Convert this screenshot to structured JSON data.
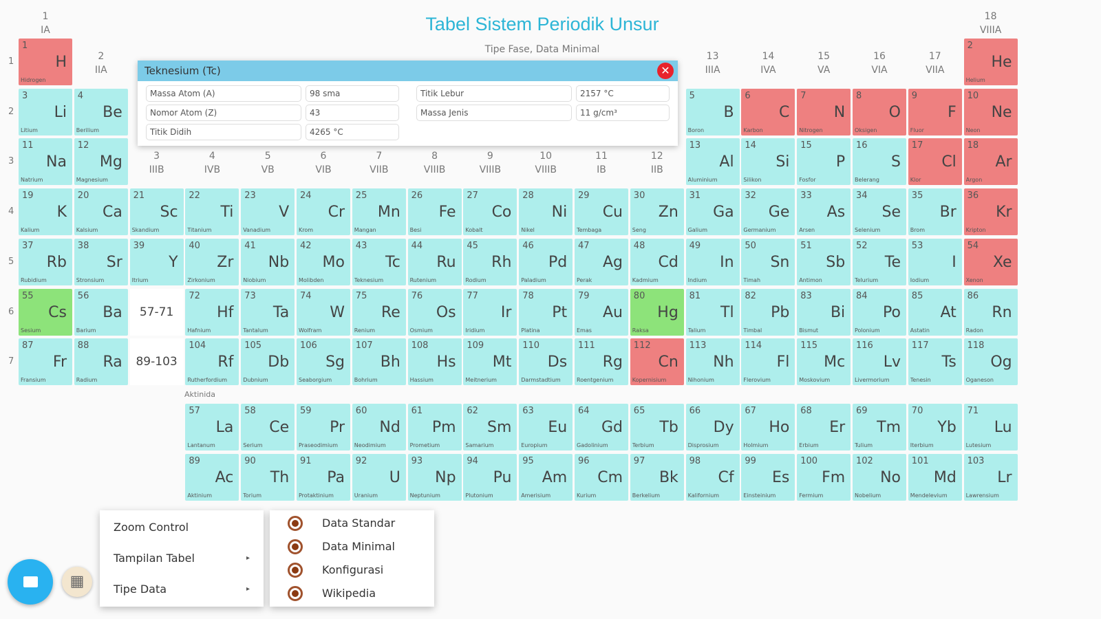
{
  "header": {
    "title": "Tabel Sistem Periodik Unsur",
    "subtitle": "Tipe Fase, Data Minimal"
  },
  "colors": {
    "solid": "#aeeeec",
    "gas": "#ee8080",
    "liquid": "#8de37a",
    "accent": "#2cb5d6"
  },
  "periods": [
    "1",
    "2",
    "3",
    "4",
    "5",
    "6",
    "7"
  ],
  "groups": [
    [
      "1",
      "IA"
    ],
    [
      "2",
      "IIA"
    ],
    [
      "3",
      "IIIB"
    ],
    [
      "4",
      "IVB"
    ],
    [
      "5",
      "VB"
    ],
    [
      "6",
      "VIB"
    ],
    [
      "7",
      "VIIB"
    ],
    [
      "8",
      "VIIIB"
    ],
    [
      "9",
      "VIIIB"
    ],
    [
      "10",
      "VIIIB"
    ],
    [
      "11",
      "IB"
    ],
    [
      "12",
      "IIB"
    ],
    [
      "13",
      "IIIA"
    ],
    [
      "14",
      "IVA"
    ],
    [
      "15",
      "VA"
    ],
    [
      "16",
      "VIA"
    ],
    [
      "17",
      "VIIA"
    ],
    [
      "18",
      "VIIIA"
    ]
  ],
  "placeholders": {
    "lanthanide": "57-71",
    "actinide": "89-103"
  },
  "series_labels": {
    "actinide": "Aktinida"
  },
  "elements": [
    [
      "1",
      "H",
      "Hidrogen",
      "g"
    ],
    [
      "2",
      "He",
      "Helium",
      "g"
    ],
    [
      "3",
      "Li",
      "Litium",
      "s"
    ],
    [
      "4",
      "Be",
      "Berilium",
      "s"
    ],
    [
      "5",
      "B",
      "Boron",
      "s"
    ],
    [
      "6",
      "C",
      "Karbon",
      "g"
    ],
    [
      "7",
      "N",
      "Nitrogen",
      "g"
    ],
    [
      "8",
      "O",
      "Oksigen",
      "g"
    ],
    [
      "9",
      "F",
      "Fluor",
      "g"
    ],
    [
      "10",
      "Ne",
      "Neon",
      "g"
    ],
    [
      "11",
      "Na",
      "Natrium",
      "s"
    ],
    [
      "12",
      "Mg",
      "Magnesium",
      "s"
    ],
    [
      "13",
      "Al",
      "Aluminium",
      "s"
    ],
    [
      "14",
      "Si",
      "Silikon",
      "s"
    ],
    [
      "15",
      "P",
      "Fosfor",
      "s"
    ],
    [
      "16",
      "S",
      "Belerang",
      "s"
    ],
    [
      "17",
      "Cl",
      "Klor",
      "g"
    ],
    [
      "18",
      "Ar",
      "Argon",
      "g"
    ],
    [
      "19",
      "K",
      "Kalium",
      "s"
    ],
    [
      "20",
      "Ca",
      "Kalsium",
      "s"
    ],
    [
      "21",
      "Sc",
      "Skandium",
      "s"
    ],
    [
      "22",
      "Ti",
      "Titanium",
      "s"
    ],
    [
      "23",
      "V",
      "Vanadium",
      "s"
    ],
    [
      "24",
      "Cr",
      "Krom",
      "s"
    ],
    [
      "25",
      "Mn",
      "Mangan",
      "s"
    ],
    [
      "26",
      "Fe",
      "Besi",
      "s"
    ],
    [
      "27",
      "Co",
      "Kobalt",
      "s"
    ],
    [
      "28",
      "Ni",
      "Nikel",
      "s"
    ],
    [
      "29",
      "Cu",
      "Tembaga",
      "s"
    ],
    [
      "30",
      "Zn",
      "Seng",
      "s"
    ],
    [
      "31",
      "Ga",
      "Galium",
      "s"
    ],
    [
      "32",
      "Ge",
      "Germanium",
      "s"
    ],
    [
      "33",
      "As",
      "Arsen",
      "s"
    ],
    [
      "34",
      "Se",
      "Selenium",
      "s"
    ],
    [
      "35",
      "Br",
      "Brom",
      "s"
    ],
    [
      "36",
      "Kr",
      "Kripton",
      "g"
    ],
    [
      "37",
      "Rb",
      "Rubidium",
      "s"
    ],
    [
      "38",
      "Sr",
      "Stronsium",
      "s"
    ],
    [
      "39",
      "Y",
      "Itrium",
      "s"
    ],
    [
      "40",
      "Zr",
      "Zirkonium",
      "s"
    ],
    [
      "41",
      "Nb",
      "Niobium",
      "s"
    ],
    [
      "42",
      "Mo",
      "Molibden",
      "s"
    ],
    [
      "43",
      "Tc",
      "Teknesium",
      "s"
    ],
    [
      "44",
      "Ru",
      "Rutenium",
      "s"
    ],
    [
      "45",
      "Rh",
      "Rodium",
      "s"
    ],
    [
      "46",
      "Pd",
      "Paladium",
      "s"
    ],
    [
      "47",
      "Ag",
      "Perak",
      "s"
    ],
    [
      "48",
      "Cd",
      "Kadmium",
      "s"
    ],
    [
      "49",
      "In",
      "Indium",
      "s"
    ],
    [
      "50",
      "Sn",
      "Timah",
      "s"
    ],
    [
      "51",
      "Sb",
      "Antimon",
      "s"
    ],
    [
      "52",
      "Te",
      "Telurium",
      "s"
    ],
    [
      "53",
      "I",
      "Iodium",
      "s"
    ],
    [
      "54",
      "Xe",
      "Xenon",
      "g"
    ],
    [
      "55",
      "Cs",
      "Sesium",
      "l"
    ],
    [
      "56",
      "Ba",
      "Barium",
      "s"
    ],
    [
      "72",
      "Hf",
      "Hafnium",
      "s"
    ],
    [
      "73",
      "Ta",
      "Tantalum",
      "s"
    ],
    [
      "74",
      "W",
      "Wolfram",
      "s"
    ],
    [
      "75",
      "Re",
      "Renium",
      "s"
    ],
    [
      "76",
      "Os",
      "Osmium",
      "s"
    ],
    [
      "77",
      "Ir",
      "Iridium",
      "s"
    ],
    [
      "78",
      "Pt",
      "Platina",
      "s"
    ],
    [
      "79",
      "Au",
      "Emas",
      "s"
    ],
    [
      "80",
      "Hg",
      "Raksa",
      "l"
    ],
    [
      "81",
      "Tl",
      "Talium",
      "s"
    ],
    [
      "82",
      "Pb",
      "Timbal",
      "s"
    ],
    [
      "83",
      "Bi",
      "Bismut",
      "s"
    ],
    [
      "84",
      "Po",
      "Polonium",
      "s"
    ],
    [
      "85",
      "At",
      "Astatin",
      "s"
    ],
    [
      "86",
      "Rn",
      "Radon",
      "s"
    ],
    [
      "87",
      "Fr",
      "Fransium",
      "s"
    ],
    [
      "88",
      "Ra",
      "Radium",
      "s"
    ],
    [
      "104",
      "Rf",
      "Rutherfordium",
      "s"
    ],
    [
      "105",
      "Db",
      "Dubnium",
      "s"
    ],
    [
      "106",
      "Sg",
      "Seaborgium",
      "s"
    ],
    [
      "107",
      "Bh",
      "Bohrium",
      "s"
    ],
    [
      "108",
      "Hs",
      "Hassium",
      "s"
    ],
    [
      "109",
      "Mt",
      "Meitnerium",
      "s"
    ],
    [
      "110",
      "Ds",
      "Darmstadtium",
      "s"
    ],
    [
      "111",
      "Rg",
      "Roentgenium",
      "s"
    ],
    [
      "112",
      "Cn",
      "Kopernisium",
      "g"
    ],
    [
      "113",
      "Nh",
      "Nihonium",
      "s"
    ],
    [
      "114",
      "Fl",
      "Flerovium",
      "s"
    ],
    [
      "115",
      "Mc",
      "Moskovium",
      "s"
    ],
    [
      "116",
      "Lv",
      "Livermorium",
      "s"
    ],
    [
      "117",
      "Ts",
      "Tenesin",
      "s"
    ],
    [
      "118",
      "Og",
      "Oganeson",
      "s"
    ]
  ],
  "lanthanides": [
    [
      "57",
      "La",
      "Lantanum",
      "s"
    ],
    [
      "58",
      "Ce",
      "Serium",
      "s"
    ],
    [
      "59",
      "Pr",
      "Praseodimium",
      "s"
    ],
    [
      "60",
      "Nd",
      "Neodimium",
      "s"
    ],
    [
      "61",
      "Pm",
      "Prometium",
      "s"
    ],
    [
      "62",
      "Sm",
      "Samarium",
      "s"
    ],
    [
      "63",
      "Eu",
      "Europium",
      "s"
    ],
    [
      "64",
      "Gd",
      "Gadolinium",
      "s"
    ],
    [
      "65",
      "Tb",
      "Terbium",
      "s"
    ],
    [
      "66",
      "Dy",
      "Disprosium",
      "s"
    ],
    [
      "67",
      "Ho",
      "Holmium",
      "s"
    ],
    [
      "68",
      "Er",
      "Erbium",
      "s"
    ],
    [
      "69",
      "Tm",
      "Tulium",
      "s"
    ],
    [
      "70",
      "Yb",
      "Iterbium",
      "s"
    ],
    [
      "71",
      "Lu",
      "Lutesium",
      "s"
    ]
  ],
  "actinides": [
    [
      "89",
      "Ac",
      "Aktinium",
      "s"
    ],
    [
      "90",
      "Th",
      "Torium",
      "s"
    ],
    [
      "91",
      "Pa",
      "Protaktinium",
      "s"
    ],
    [
      "92",
      "U",
      "Uranium",
      "s"
    ],
    [
      "93",
      "Np",
      "Neptunium",
      "s"
    ],
    [
      "94",
      "Pu",
      "Plutonium",
      "s"
    ],
    [
      "95",
      "Am",
      "Amerisium",
      "s"
    ],
    [
      "96",
      "Cm",
      "Kurium",
      "s"
    ],
    [
      "97",
      "Bk",
      "Berkelium",
      "s"
    ],
    [
      "98",
      "Cf",
      "Kalifornium",
      "s"
    ],
    [
      "99",
      "Es",
      "Einsteinium",
      "s"
    ],
    [
      "100",
      "Fm",
      "Fermium",
      "s"
    ],
    [
      "102",
      "No",
      "Nobelium",
      "s"
    ],
    [
      "101",
      "Md",
      "Mendelevium",
      "s"
    ],
    [
      "103",
      "Lr",
      "Lawrensium",
      "s"
    ]
  ],
  "popup": {
    "title": "Teknesium (Tc)",
    "rows": [
      [
        "Massa Atom (A)",
        "98 sma"
      ],
      [
        "Nomor Atom (Z)",
        "43"
      ],
      [
        "Titik Didih",
        "4265 °C"
      ],
      [
        "Titik Lebur",
        "2157 °C"
      ],
      [
        "Massa Jenis",
        "11 g/cm³"
      ]
    ]
  },
  "menu": {
    "items": [
      "Zoom Control",
      "Tampilan Tabel",
      "Tipe Data"
    ],
    "arrow": "▸"
  },
  "submenu": {
    "items": [
      "Data Standar",
      "Data Minimal",
      "Konfigurasi",
      "Wikipedia"
    ]
  },
  "fab2_icon": "▦"
}
